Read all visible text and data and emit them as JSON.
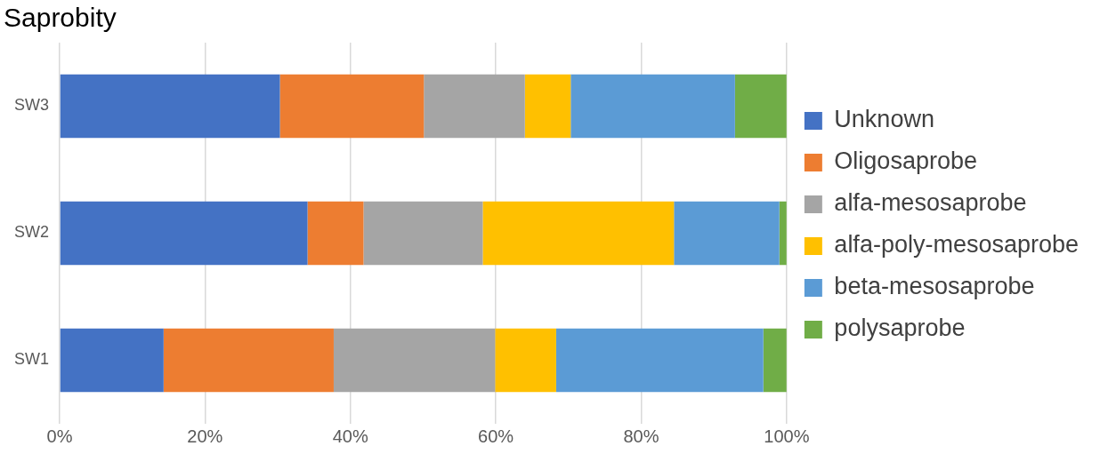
{
  "chart_data": {
    "type": "bar",
    "orientation": "horizontal",
    "stacked": true,
    "title": "Saprobity",
    "categories": [
      "SW3",
      "SW2",
      "SW1"
    ],
    "series": [
      {
        "name": "Unknown",
        "color": "#4472c4",
        "values": [
          30.3,
          34.1,
          14.3
        ]
      },
      {
        "name": "Oligosaprobe",
        "color": "#ed7d31",
        "values": [
          19.8,
          7.7,
          23.4
        ]
      },
      {
        "name": "alfa-mesosaprobe",
        "color": "#a5a5a5",
        "values": [
          13.9,
          16.4,
          22.2
        ]
      },
      {
        "name": "alfa-poly-mesosaprobe",
        "color": "#ffc000",
        "values": [
          6.3,
          26.3,
          8.4
        ]
      },
      {
        "name": "beta-mesosaprobe",
        "color": "#5b9bd5",
        "values": [
          22.6,
          14.5,
          28.5
        ]
      },
      {
        "name": "polysaprobe",
        "color": "#70ad47",
        "values": [
          7.1,
          1.0,
          3.2
        ]
      }
    ],
    "xlim": [
      0,
      100
    ],
    "xticks": [
      {
        "value": 0,
        "label": "0%"
      },
      {
        "value": 20,
        "label": "20%"
      },
      {
        "value": 40,
        "label": "40%"
      },
      {
        "value": 60,
        "label": "60%"
      },
      {
        "value": 80,
        "label": "80%"
      },
      {
        "value": 100,
        "label": "100%"
      }
    ],
    "grid": "x",
    "legend": "right"
  }
}
